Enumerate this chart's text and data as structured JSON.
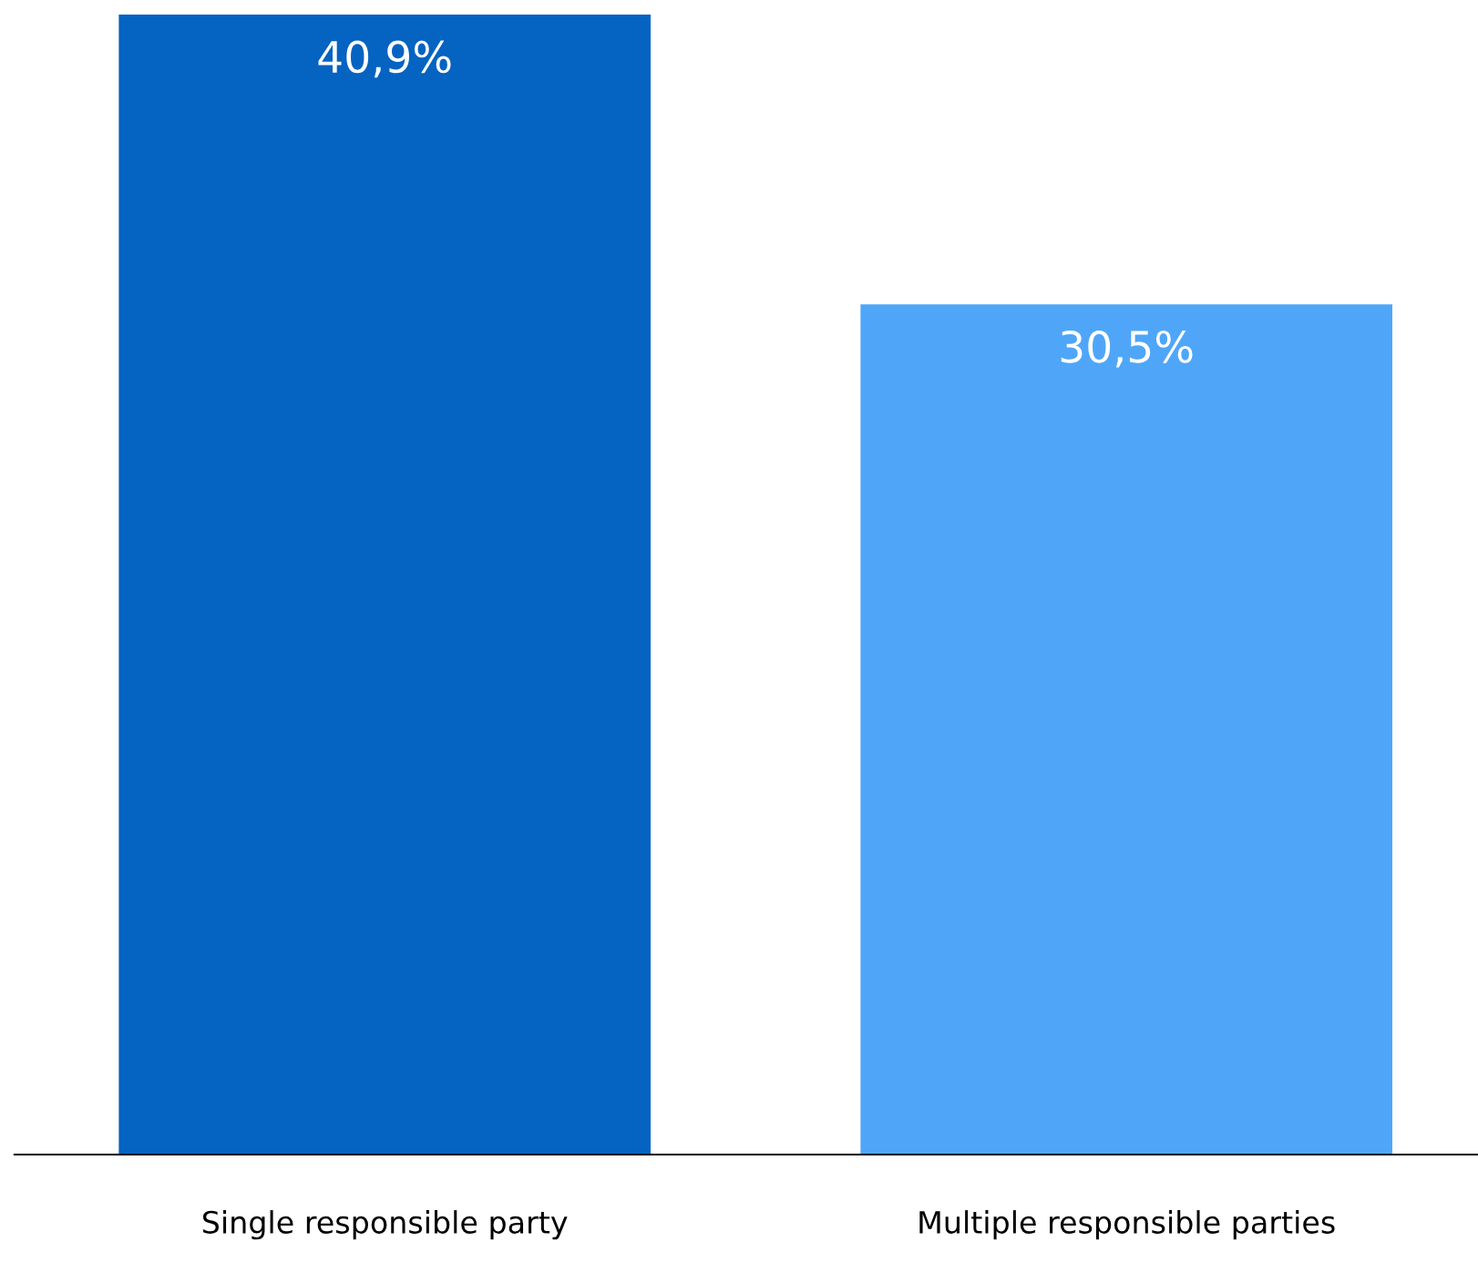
{
  "chart_data": {
    "type": "bar",
    "categories": [
      "Single responsible party",
      "Multiple responsible parties"
    ],
    "values": [
      40.9,
      30.5
    ],
    "colors": [
      "#0563c1",
      "#4fa6f9"
    ],
    "value_labels": [
      "40,9%",
      "30,5%"
    ],
    "grid": false,
    "legend": false
  }
}
